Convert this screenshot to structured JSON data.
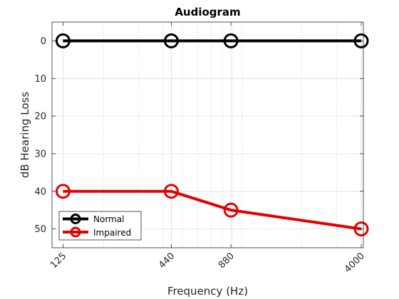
{
  "chart_data": {
    "type": "line",
    "title": "Audiogram",
    "xlabel": "Frequency (Hz)",
    "ylabel": "dB Hearing Loss",
    "x": [
      125,
      440,
      880,
      4000
    ],
    "x_scale": "log",
    "xlim": [
      110,
      4100
    ],
    "x_ticks": [
      125,
      440,
      880,
      4000
    ],
    "x_tick_labels": [
      "125",
      "440",
      "880",
      "4000"
    ],
    "ylim": [
      -5,
      55
    ],
    "y_reversed": true,
    "y_ticks": [
      0,
      10,
      20,
      30,
      40,
      50
    ],
    "y_tick_labels": [
      "0",
      "10",
      "20",
      "30",
      "40",
      "50"
    ],
    "grid": true,
    "legend_position": "bottom-left",
    "series": [
      {
        "name": "Normal",
        "values": [
          0,
          0,
          0,
          0
        ],
        "color": "#000000",
        "marker": "circle"
      },
      {
        "name": "Impaired",
        "values": [
          40,
          40,
          45,
          50
        ],
        "color": "#e60000",
        "marker": "circle"
      }
    ]
  }
}
